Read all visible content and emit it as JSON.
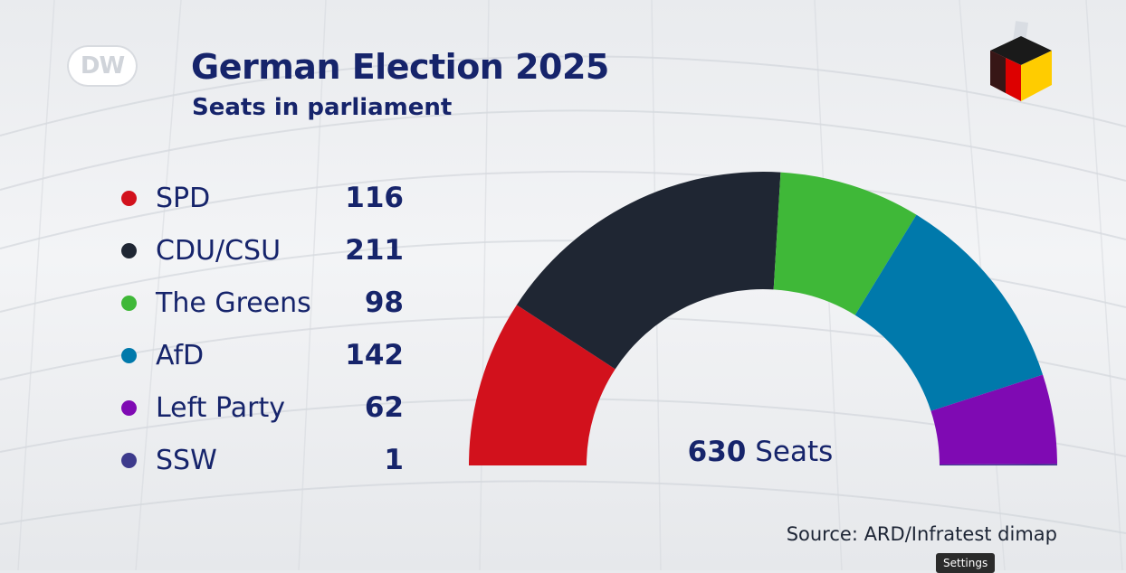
{
  "brand": {
    "logo_text": "DW"
  },
  "header": {
    "title": "German Election 2025",
    "subtitle": "Seats in parliament"
  },
  "chart_data": {
    "type": "pie",
    "shape": "semicircle",
    "title": "German Election 2025",
    "subtitle": "Seats in parliament",
    "categories": [
      "SPD",
      "CDU/CSU",
      "The Greens",
      "AfD",
      "Left Party",
      "SSW"
    ],
    "values": [
      116,
      211,
      98,
      142,
      62,
      1
    ],
    "colors": [
      "#d2111c",
      "#1f2633",
      "#3fb838",
      "#0079ab",
      "#7f0ab3",
      "#3d3a8c"
    ],
    "total": 630,
    "total_label": "Seats"
  },
  "legend": [
    {
      "name": "SPD",
      "value": "116",
      "color": "#d2111c"
    },
    {
      "name": "CDU/CSU",
      "value": "211",
      "color": "#1f2633"
    },
    {
      "name": "The Greens",
      "value": "98",
      "color": "#3fb838"
    },
    {
      "name": "AfD",
      "value": "142",
      "color": "#0079ab"
    },
    {
      "name": "Left Party",
      "value": "62",
      "color": "#7f0ab3"
    },
    {
      "name": "SSW",
      "value": "1",
      "color": "#3d3a8c"
    }
  ],
  "center_label": {
    "number": "630",
    "unit": "Seats"
  },
  "source": "Source: ARD/Infratest dimap",
  "player": {
    "tooltip": "Settings"
  }
}
